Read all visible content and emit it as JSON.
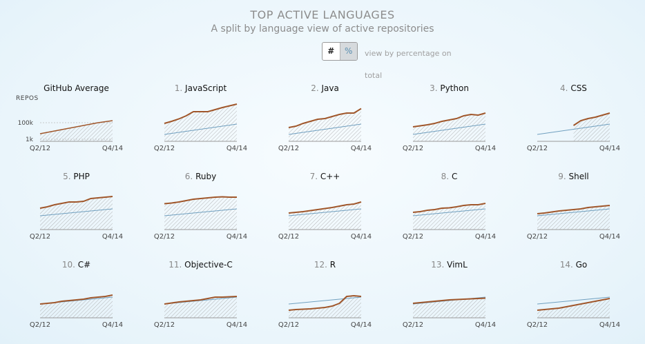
{
  "header": {
    "title": "TOP ACTIVE LANGUAGES",
    "subtitle": "A split by language view of active repositories"
  },
  "toggle": {
    "count_label": "#",
    "percent_label": "%",
    "description": "view by percentage on total"
  },
  "colors": {
    "language_line": "#a0562a",
    "average_line": "#6f9fbf",
    "hatch": "#9a9a9a",
    "axis": "#999999"
  },
  "chart_data": [
    {
      "type": "area",
      "title": "GitHub Average",
      "rank": "",
      "ylabel": "REPOS",
      "yticks": [
        "100k",
        "1k"
      ],
      "xticks": [
        "Q2/12",
        "Q4/14"
      ],
      "x": [
        "Q2/12",
        "Q3/12",
        "Q4/12",
        "Q1/13",
        "Q2/13",
        "Q3/13",
        "Q4/13",
        "Q1/14",
        "Q2/14",
        "Q3/14",
        "Q4/14"
      ],
      "y_scale": "log",
      "grid": "dashed",
      "series": [
        {
          "values": [
            0.22,
            0.26,
            0.3,
            0.34,
            0.38,
            0.42,
            0.46,
            0.5,
            0.54,
            0.57,
            0.6
          ]
        }
      ]
    },
    {
      "type": "area",
      "title": "JavaScript",
      "rank": "1.",
      "xticks": [
        "Q2/12",
        "Q4/14"
      ],
      "x": [
        "Q2/12",
        "Q3/12",
        "Q4/12",
        "Q1/13",
        "Q2/13",
        "Q3/13",
        "Q4/13",
        "Q1/14",
        "Q2/14",
        "Q3/14",
        "Q4/14"
      ],
      "series": [
        {
          "values": [
            0.52,
            0.58,
            0.65,
            0.74,
            0.86,
            0.86,
            0.86,
            0.92,
            0.98,
            1.03,
            1.08
          ]
        },
        {
          "values": [
            0.2,
            0.23,
            0.26,
            0.29,
            0.32,
            0.35,
            0.38,
            0.41,
            0.44,
            0.47,
            0.5
          ]
        }
      ]
    },
    {
      "type": "area",
      "title": "Java",
      "rank": "2.",
      "xticks": [
        "Q2/12",
        "Q4/14"
      ],
      "x": [
        "Q2/12",
        "Q3/12",
        "Q4/12",
        "Q1/13",
        "Q2/13",
        "Q3/13",
        "Q4/13",
        "Q1/14",
        "Q2/14",
        "Q3/14",
        "Q4/14"
      ],
      "series": [
        {
          "values": [
            0.4,
            0.44,
            0.52,
            0.58,
            0.64,
            0.66,
            0.72,
            0.78,
            0.82,
            0.82,
            0.95
          ]
        },
        {
          "values": [
            0.2,
            0.23,
            0.26,
            0.29,
            0.32,
            0.35,
            0.38,
            0.41,
            0.44,
            0.47,
            0.5
          ]
        }
      ]
    },
    {
      "type": "area",
      "title": "Python",
      "rank": "3.",
      "xticks": [
        "Q2/12",
        "Q4/14"
      ],
      "x": [
        "Q2/12",
        "Q3/12",
        "Q4/12",
        "Q1/13",
        "Q2/13",
        "Q3/13",
        "Q4/13",
        "Q1/14",
        "Q2/14",
        "Q3/14",
        "Q4/14"
      ],
      "series": [
        {
          "values": [
            0.42,
            0.45,
            0.48,
            0.52,
            0.58,
            0.62,
            0.66,
            0.74,
            0.78,
            0.76,
            0.82
          ]
        },
        {
          "values": [
            0.2,
            0.23,
            0.26,
            0.29,
            0.32,
            0.35,
            0.38,
            0.41,
            0.44,
            0.47,
            0.5
          ]
        }
      ]
    },
    {
      "type": "area",
      "title": "CSS",
      "rank": "4.",
      "xticks": [
        "Q2/12",
        "Q4/14"
      ],
      "x": [
        "Q2/12",
        "Q3/12",
        "Q4/12",
        "Q1/13",
        "Q2/13",
        "Q3/13",
        "Q4/13",
        "Q1/14",
        "Q2/14",
        "Q3/14",
        "Q4/14"
      ],
      "series": [
        {
          "values": [
            null,
            null,
            null,
            null,
            null,
            0.46,
            0.6,
            0.66,
            0.7,
            0.76,
            0.82
          ]
        },
        {
          "values": [
            0.2,
            0.23,
            0.26,
            0.29,
            0.32,
            0.35,
            0.38,
            0.41,
            0.44,
            0.47,
            0.5
          ]
        }
      ]
    },
    {
      "type": "area",
      "title": "PHP",
      "rank": "5.",
      "xticks": [
        "Q2/12",
        "Q4/14"
      ],
      "x": [
        "Q2/12",
        "Q3/12",
        "Q4/12",
        "Q1/13",
        "Q2/13",
        "Q3/13",
        "Q4/13",
        "Q1/14",
        "Q2/14",
        "Q3/14",
        "Q4/14"
      ],
      "series": [
        {
          "values": [
            0.62,
            0.66,
            0.72,
            0.76,
            0.8,
            0.8,
            0.82,
            0.9,
            0.92,
            0.94,
            0.96
          ]
        },
        {
          "values": [
            0.4,
            0.42,
            0.44,
            0.46,
            0.48,
            0.5,
            0.52,
            0.54,
            0.56,
            0.58,
            0.6
          ]
        }
      ]
    },
    {
      "type": "area",
      "title": "Ruby",
      "rank": "6.",
      "xticks": [
        "Q2/12",
        "Q4/14"
      ],
      "x": [
        "Q2/12",
        "Q3/12",
        "Q4/12",
        "Q1/13",
        "Q2/13",
        "Q3/13",
        "Q4/13",
        "Q1/14",
        "Q2/14",
        "Q3/14",
        "Q4/14"
      ],
      "series": [
        {
          "values": [
            0.75,
            0.77,
            0.8,
            0.84,
            0.88,
            0.9,
            0.92,
            0.94,
            0.95,
            0.94,
            0.94
          ]
        },
        {
          "values": [
            0.4,
            0.42,
            0.44,
            0.46,
            0.48,
            0.5,
            0.52,
            0.54,
            0.56,
            0.58,
            0.6
          ]
        }
      ]
    },
    {
      "type": "area",
      "title": "C++",
      "rank": "7.",
      "xticks": [
        "Q2/12",
        "Q4/14"
      ],
      "x": [
        "Q2/12",
        "Q3/12",
        "Q4/12",
        "Q1/13",
        "Q2/13",
        "Q3/13",
        "Q4/13",
        "Q1/14",
        "Q2/14",
        "Q3/14",
        "Q4/14"
      ],
      "series": [
        {
          "values": [
            0.48,
            0.5,
            0.52,
            0.55,
            0.58,
            0.61,
            0.64,
            0.68,
            0.72,
            0.74,
            0.8
          ]
        },
        {
          "values": [
            0.4,
            0.42,
            0.44,
            0.46,
            0.48,
            0.5,
            0.52,
            0.54,
            0.56,
            0.58,
            0.6
          ]
        }
      ]
    },
    {
      "type": "area",
      "title": "C",
      "rank": "8.",
      "xticks": [
        "Q2/12",
        "Q4/14"
      ],
      "x": [
        "Q2/12",
        "Q3/12",
        "Q4/12",
        "Q1/13",
        "Q2/13",
        "Q3/13",
        "Q4/13",
        "Q1/14",
        "Q2/14",
        "Q3/14",
        "Q4/14"
      ],
      "series": [
        {
          "values": [
            0.5,
            0.52,
            0.56,
            0.58,
            0.62,
            0.63,
            0.66,
            0.7,
            0.72,
            0.72,
            0.76
          ]
        },
        {
          "values": [
            0.4,
            0.42,
            0.44,
            0.46,
            0.48,
            0.5,
            0.52,
            0.54,
            0.56,
            0.58,
            0.6
          ]
        }
      ]
    },
    {
      "type": "area",
      "title": "Shell",
      "rank": "9.",
      "xticks": [
        "Q2/12",
        "Q4/14"
      ],
      "x": [
        "Q2/12",
        "Q3/12",
        "Q4/12",
        "Q1/13",
        "Q2/13",
        "Q3/13",
        "Q4/13",
        "Q1/14",
        "Q2/14",
        "Q3/14",
        "Q4/14"
      ],
      "series": [
        {
          "values": [
            0.46,
            0.48,
            0.51,
            0.54,
            0.56,
            0.58,
            0.6,
            0.64,
            0.66,
            0.68,
            0.7
          ]
        },
        {
          "values": [
            0.4,
            0.42,
            0.44,
            0.46,
            0.48,
            0.5,
            0.52,
            0.54,
            0.56,
            0.58,
            0.6
          ]
        }
      ]
    },
    {
      "type": "area",
      "title": "C#",
      "rank": "10.",
      "xticks": [
        "Q2/12",
        "Q4/14"
      ],
      "x": [
        "Q2/12",
        "Q3/12",
        "Q4/12",
        "Q1/13",
        "Q2/13",
        "Q3/13",
        "Q4/13",
        "Q1/14",
        "Q2/14",
        "Q3/14",
        "Q4/14"
      ],
      "series": [
        {
          "values": [
            0.4,
            0.42,
            0.44,
            0.48,
            0.5,
            0.52,
            0.54,
            0.58,
            0.6,
            0.62,
            0.66
          ]
        },
        {
          "values": [
            0.4,
            0.42,
            0.44,
            0.46,
            0.48,
            0.5,
            0.52,
            0.54,
            0.56,
            0.58,
            0.6
          ]
        }
      ]
    },
    {
      "type": "area",
      "title": "Objective-C",
      "rank": "11.",
      "xticks": [
        "Q2/12",
        "Q4/14"
      ],
      "x": [
        "Q2/12",
        "Q3/12",
        "Q4/12",
        "Q1/13",
        "Q2/13",
        "Q3/13",
        "Q4/13",
        "Q1/14",
        "Q2/14",
        "Q3/14",
        "Q4/14"
      ],
      "series": [
        {
          "values": [
            0.4,
            0.43,
            0.46,
            0.48,
            0.5,
            0.52,
            0.56,
            0.6,
            0.6,
            0.61,
            0.62
          ]
        },
        {
          "values": [
            0.4,
            0.42,
            0.44,
            0.46,
            0.48,
            0.5,
            0.52,
            0.54,
            0.56,
            0.58,
            0.6
          ]
        }
      ]
    },
    {
      "type": "area",
      "title": "R",
      "rank": "12.",
      "xticks": [
        "Q2/12",
        "Q4/14"
      ],
      "x": [
        "Q2/12",
        "Q3/12",
        "Q4/12",
        "Q1/13",
        "Q2/13",
        "Q3/13",
        "Q4/13",
        "Q1/14",
        "Q2/14",
        "Q3/14",
        "Q4/14"
      ],
      "series": [
        {
          "values": [
            0.22,
            0.24,
            0.25,
            0.26,
            0.28,
            0.3,
            0.34,
            0.42,
            0.62,
            0.64,
            0.62
          ]
        },
        {
          "values": [
            0.4,
            0.42,
            0.44,
            0.46,
            0.48,
            0.5,
            0.52,
            0.54,
            0.56,
            0.58,
            0.6
          ]
        }
      ]
    },
    {
      "type": "area",
      "title": "VimL",
      "rank": "13.",
      "xticks": [
        "Q2/12",
        "Q4/14"
      ],
      "x": [
        "Q2/12",
        "Q3/12",
        "Q4/12",
        "Q1/13",
        "Q2/13",
        "Q3/13",
        "Q4/13",
        "Q1/14",
        "Q2/14",
        "Q3/14",
        "Q4/14"
      ],
      "series": [
        {
          "values": [
            0.42,
            0.44,
            0.46,
            0.48,
            0.5,
            0.52,
            0.53,
            0.54,
            0.55,
            0.56,
            0.57
          ]
        },
        {
          "values": [
            0.4,
            0.42,
            0.44,
            0.46,
            0.48,
            0.5,
            0.52,
            0.54,
            0.56,
            0.58,
            0.6
          ]
        }
      ]
    },
    {
      "type": "area",
      "title": "Go",
      "rank": "14.",
      "xticks": [
        "Q2/12",
        "Q4/14"
      ],
      "x": [
        "Q2/12",
        "Q3/12",
        "Q4/12",
        "Q1/13",
        "Q2/13",
        "Q3/13",
        "Q4/13",
        "Q1/14",
        "Q2/14",
        "Q3/14",
        "Q4/14"
      ],
      "series": [
        {
          "values": [
            0.22,
            0.24,
            0.26,
            0.28,
            0.32,
            0.36,
            0.4,
            0.44,
            0.48,
            0.52,
            0.56
          ]
        },
        {
          "values": [
            0.4,
            0.42,
            0.44,
            0.46,
            0.48,
            0.5,
            0.52,
            0.54,
            0.56,
            0.58,
            0.6
          ]
        }
      ]
    }
  ]
}
